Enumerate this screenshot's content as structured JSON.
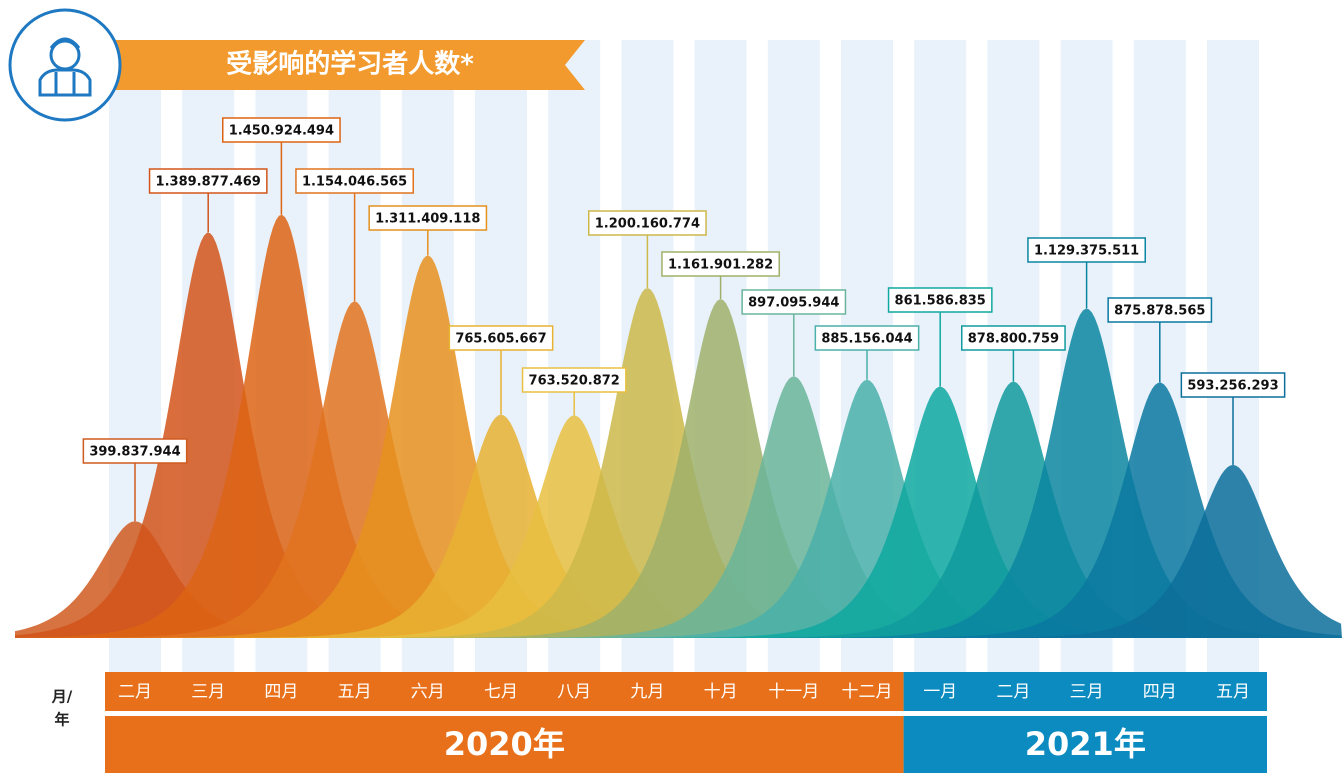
{
  "chart_data": {
    "type": "bell",
    "title": "受影响的学习者人数*",
    "x_label": [
      "月/",
      "年"
    ],
    "categories": [
      "二月",
      "三月",
      "四月",
      "五月",
      "六月",
      "七月",
      "八月",
      "九月",
      "十月",
      "十一月",
      "十二月",
      "一月",
      "二月",
      "三月",
      "四月",
      "五月"
    ],
    "values": [
      399837944,
      1389877469,
      1450924494,
      1154046565,
      1311409118,
      765605667,
      763520872,
      1200160774,
      1161901282,
      897095944,
      885156044,
      861586835,
      878800759,
      1129375511,
      875878565,
      593256293
    ],
    "value_labels": [
      "399.837.944",
      "1.389.877.469",
      "1.450.924.494",
      "1.154.046.565",
      "1.311.409.118",
      "765.605.667",
      "763.520.872",
      "1.200.160.774",
      "1.161.901.282",
      "897.095.944",
      "885.156.044",
      "861.586.835",
      "878.800.759",
      "1.129.375.511",
      "875.878.565",
      "593.256.293"
    ],
    "colors": [
      "#cf5a1e",
      "#d2541a",
      "#dc6414",
      "#e0731e",
      "#e6901e",
      "#e8b232",
      "#e8c040",
      "#cdb84a",
      "#9fb06a",
      "#6ab59a",
      "#4ab0aa",
      "#0ea8a0",
      "#109a9e",
      "#0a86a0",
      "#0a78a0",
      "#0c6f9a"
    ],
    "groups": [
      {
        "label": "2020年",
        "span": 11,
        "color": "#e8701a"
      },
      {
        "label": "2021年",
        "span": 5,
        "color": "#0b8bc0"
      }
    ]
  }
}
